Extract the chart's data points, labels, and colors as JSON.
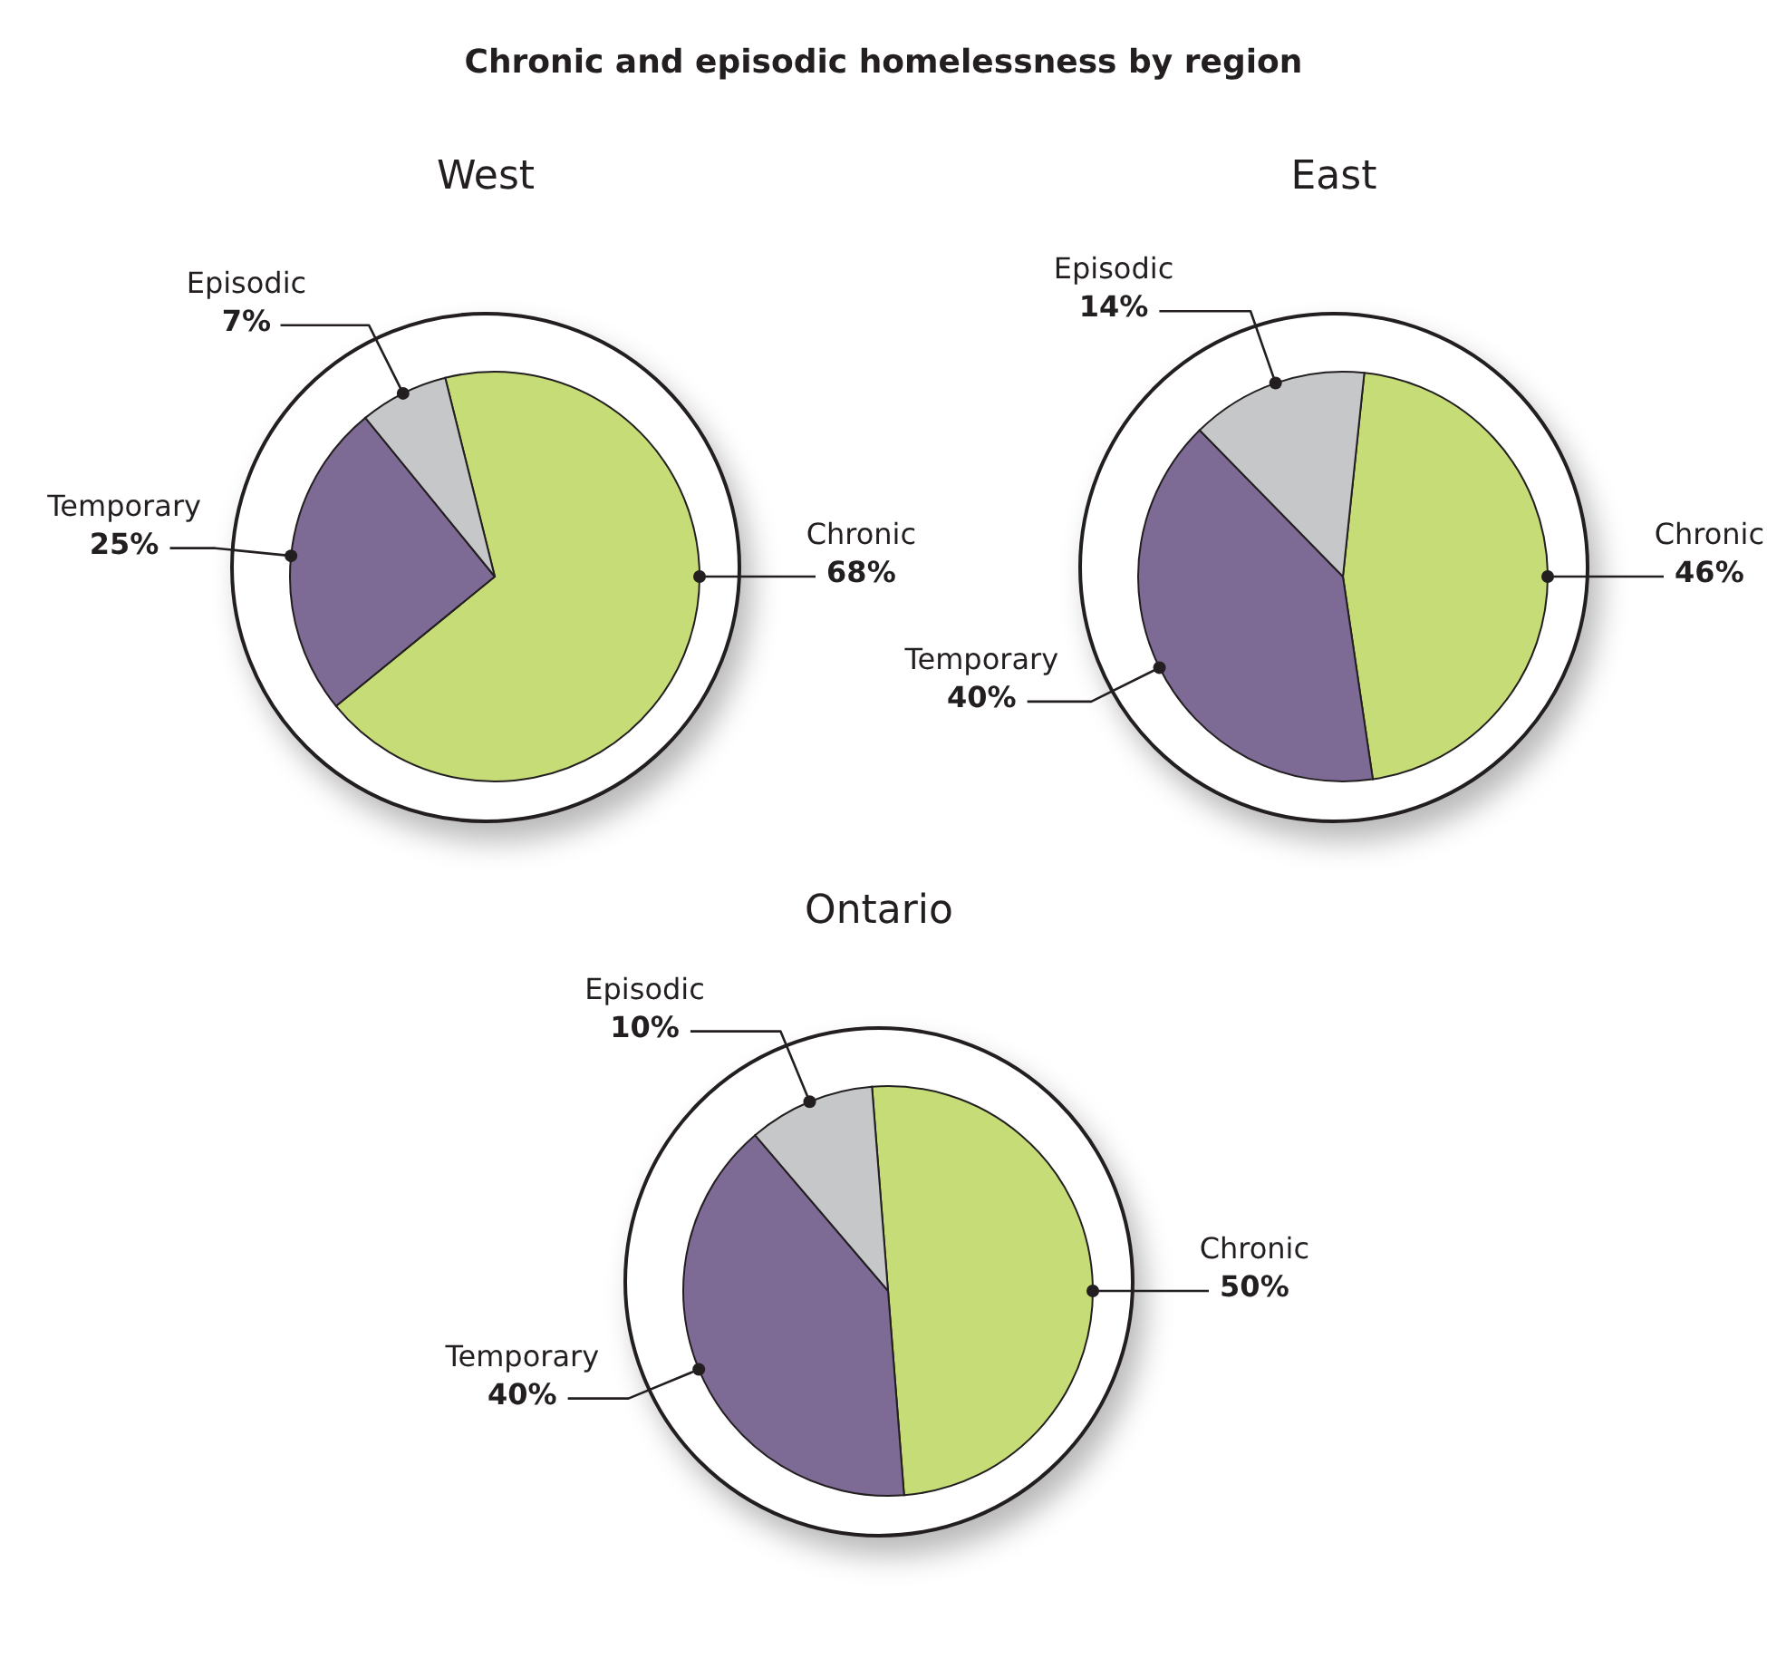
{
  "chart_data": [
    {
      "type": "pie",
      "title": "West",
      "annotations": [
        "Chronic and episodic homelessness by region"
      ],
      "categories": [
        "Chronic",
        "Temporary",
        "Episodic"
      ],
      "values": [
        68,
        25,
        7
      ],
      "value_labels": [
        "68%",
        "25%",
        "7%"
      ],
      "colors": [
        "#c5dc77",
        "#7e6b95",
        "#c6c7c9"
      ]
    },
    {
      "type": "pie",
      "title": "East",
      "categories": [
        "Chronic",
        "Temporary",
        "Episodic"
      ],
      "values": [
        46,
        40,
        14
      ],
      "value_labels": [
        "46%",
        "40%",
        "14%"
      ],
      "colors": [
        "#c5dc77",
        "#7e6b95",
        "#c6c7c9"
      ]
    },
    {
      "type": "pie",
      "title": "Ontario",
      "categories": [
        "Chronic",
        "Temporary",
        "Episodic"
      ],
      "values": [
        50,
        40,
        10
      ],
      "value_labels": [
        "50%",
        "40%",
        "10%"
      ],
      "colors": [
        "#c5dc77",
        "#7e6b95",
        "#c6c7c9"
      ]
    }
  ]
}
